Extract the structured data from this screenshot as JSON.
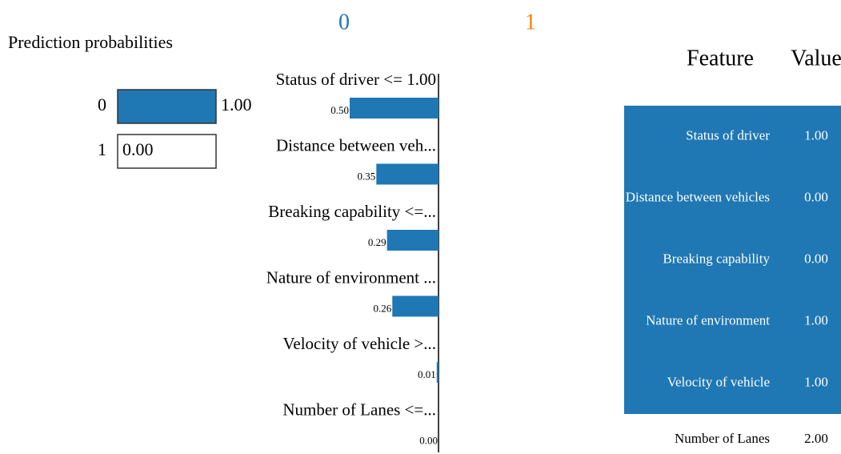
{
  "chart_data": [
    {
      "type": "bar",
      "title": "Prediction probabilities",
      "orientation": "horizontal",
      "categories": [
        "0",
        "1"
      ],
      "values": [
        1.0,
        0.0
      ],
      "value_labels": [
        "1.00",
        "0.00"
      ],
      "colors": [
        "#1f77b4",
        "#ff7f0e"
      ],
      "xlim": [
        0,
        1
      ]
    },
    {
      "type": "bar",
      "orientation": "horizontal",
      "class_names": [
        "0",
        "1"
      ],
      "class_colors": [
        "#1f77b4",
        "#ff7f0e"
      ],
      "categories": [
        "Status of driver <= 1.00",
        "Distance between veh...",
        "Breaking capability <=...",
        "Nature of environment ...",
        "Velocity of vehicle >...",
        "Number of Lanes <=..."
      ],
      "values": [
        0.5,
        0.35,
        0.29,
        0.26,
        0.01,
        0.0
      ],
      "value_labels": [
        "0.50",
        "0.35",
        "0.29",
        "0.26",
        "0.01",
        "0.00"
      ],
      "color": "#1f77b4",
      "xlim": [
        0,
        0.5
      ]
    }
  ],
  "table": {
    "header": [
      "Feature",
      "Value"
    ],
    "rows": [
      [
        "Status of driver",
        "1.00"
      ],
      [
        "Distance between vehicles",
        "0.00"
      ],
      [
        "Breaking capability",
        "0.00"
      ],
      [
        "Nature of environment",
        "1.00"
      ],
      [
        "Velocity of vehicle",
        "1.00"
      ],
      [
        "Number of Lanes",
        "2.00"
      ]
    ],
    "highlight": [
      true,
      true,
      true,
      true,
      true,
      false
    ],
    "highlight_color": "#1f77b4"
  }
}
